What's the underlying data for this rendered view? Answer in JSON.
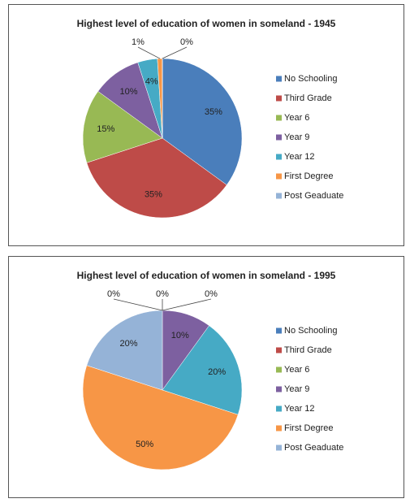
{
  "chart_data": [
    {
      "type": "pie",
      "title": "Highest level of education of women in someland - 1945",
      "categories": [
        "No Schooling",
        "Third Grade",
        "Year 6",
        "Year 9",
        "Year 12",
        "First Degree",
        "Post Geaduate"
      ],
      "values": [
        35,
        35,
        15,
        10,
        4,
        1,
        0
      ],
      "value_labels": [
        "35%",
        "35%",
        "15%",
        "10%",
        "4%",
        "1%",
        "0%"
      ],
      "colors": [
        "#4a7ebb",
        "#be4b48",
        "#98b954",
        "#7d60a0",
        "#46aac5",
        "#f79646",
        "#95b3d7"
      ],
      "legend": "right"
    },
    {
      "type": "pie",
      "title": "Highest level of education of women in someland - 1995",
      "categories": [
        "No Schooling",
        "Third Grade",
        "Year 6",
        "Year 9",
        "Year 12",
        "First Degree",
        "Post Geaduate"
      ],
      "values": [
        0,
        0,
        0,
        10,
        20,
        50,
        20
      ],
      "value_labels": [
        "0%",
        "0%",
        "0%",
        "10%",
        "20%",
        "50%",
        "20%"
      ],
      "colors": [
        "#4a7ebb",
        "#be4b48",
        "#98b954",
        "#7d60a0",
        "#46aac5",
        "#f79646",
        "#95b3d7"
      ],
      "legend": "right"
    }
  ]
}
